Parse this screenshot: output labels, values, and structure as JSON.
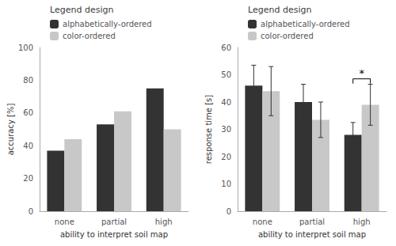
{
  "chart_data": [
    {
      "type": "bar",
      "xlabel": "ability to interpret soil map",
      "ylabel": "accuracy [%]",
      "legend_title": "Legend design",
      "categories": [
        "none",
        "partial",
        "high"
      ],
      "series": [
        {
          "name": "alphabetically-ordered",
          "color": "#333333",
          "values": [
            37,
            53,
            75
          ]
        },
        {
          "name": "color-ordered",
          "color": "#c8c8c8",
          "values": [
            44,
            61,
            50
          ]
        }
      ],
      "ylim": [
        0,
        100
      ],
      "yticks": [
        0,
        20,
        40,
        60,
        80,
        100
      ],
      "grid": false,
      "legend": "top"
    },
    {
      "type": "bar",
      "xlabel": "ability to interpret soil map",
      "ylabel": "response time [s]",
      "legend_title": "Legend design",
      "categories": [
        "none",
        "partial",
        "high"
      ],
      "series": [
        {
          "name": "alphabetically-ordered",
          "color": "#333333",
          "values": [
            46,
            40,
            28
          ],
          "errors": [
            7.5,
            6.5,
            4.5
          ]
        },
        {
          "name": "color-ordered",
          "color": "#c8c8c8",
          "values": [
            44,
            33.5,
            39
          ],
          "errors": [
            9,
            6.5,
            7.5
          ]
        }
      ],
      "ylim": [
        0,
        60
      ],
      "yticks": [
        0,
        10,
        20,
        30,
        40,
        50,
        60
      ],
      "grid": false,
      "legend": "top",
      "annotations": [
        {
          "text": "*",
          "category": "high",
          "y": 48.5
        }
      ]
    }
  ]
}
